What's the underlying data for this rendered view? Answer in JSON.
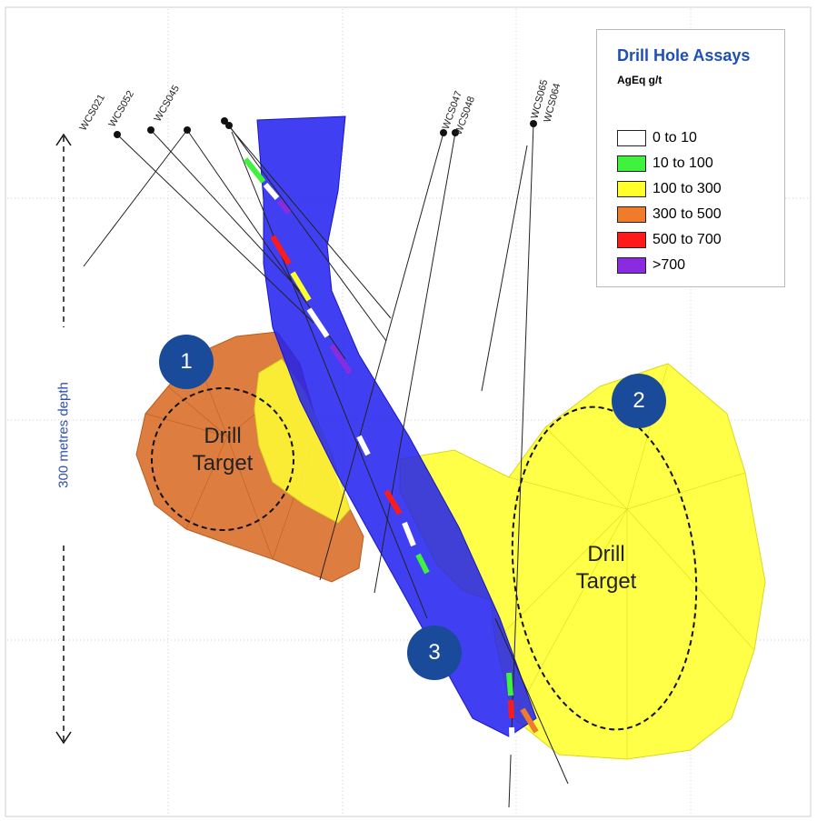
{
  "legend": {
    "title": "Drill Hole Assays",
    "subtitle": "AgEq g/t",
    "items": [
      {
        "label": "0 to 10",
        "color": "#ffffff"
      },
      {
        "label": "10 to 100",
        "color": "#3ef23e"
      },
      {
        "label": "100 to 300",
        "color": "#ffff2a"
      },
      {
        "label": "300 to 500",
        "color": "#f07b2a"
      },
      {
        "label": "500 to 700",
        "color": "#ff1a1a"
      },
      {
        "label": ">700",
        "color": "#8a2be2"
      }
    ]
  },
  "depth_label": "300 metres depth",
  "targets": [
    {
      "badge": "1",
      "text": "Drill Target"
    },
    {
      "badge": "2",
      "text": "Drill Target"
    },
    {
      "badge": "3",
      "text": ""
    }
  ],
  "hole_labels": [
    "WCS021",
    "WCS052",
    "WCS045",
    "WCS047",
    "WCS048",
    "WCS065",
    "WCS064"
  ],
  "colors": {
    "vein": "#1f1ff0",
    "orange_body": "#d9702b",
    "yellow_body": "#ffff33",
    "badge": "#1a4a9a",
    "grid": "#bdbdbd"
  }
}
